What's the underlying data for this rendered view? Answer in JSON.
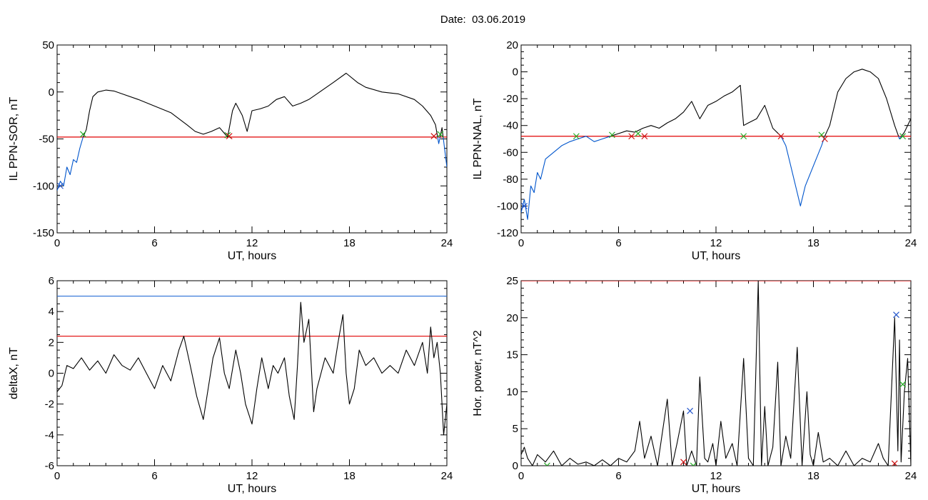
{
  "header": {
    "date_label": "Date:",
    "date_value": "03.06.2019"
  },
  "colors": {
    "trace": "#000000",
    "below": "#0055cc",
    "threshold_red": "#e00000",
    "threshold_blue": "#2a6fd6",
    "marker_green": "#22aa22",
    "marker_red": "#cc1111",
    "marker_blue": "#2255cc"
  },
  "chart_data": [
    {
      "id": "p1",
      "type": "line",
      "xlabel": "UT, hours",
      "ylabel": "IL PPN-SOR, nT",
      "xlim": [
        0,
        24
      ],
      "ylim": [
        -150,
        50
      ],
      "xticks": [
        0,
        6,
        12,
        18,
        24
      ],
      "yticks": [
        -150,
        -100,
        -50,
        0,
        50
      ],
      "threshold": {
        "value": -48,
        "color": "red"
      },
      "below_color": "blue",
      "series": [
        {
          "x": [
            0,
            0.2,
            0.4,
            0.6,
            0.8,
            1.0,
            1.2,
            1.4,
            1.6,
            1.8,
            2.0,
            2.2,
            2.5,
            3.0,
            3.5,
            4.0,
            5.0,
            6.0,
            7.0,
            8.0,
            8.5,
            9.0,
            9.5,
            10.0,
            10.3,
            10.5,
            10.8,
            11.0,
            11.4,
            11.7,
            12.0,
            12.5,
            13.0,
            13.5,
            14.0,
            14.5,
            15.0,
            15.5,
            16.0,
            17.0,
            17.8,
            18.5,
            19.0,
            20.0,
            21.0,
            22.0,
            22.5,
            23.0,
            23.3,
            23.5,
            23.7,
            24.0
          ],
          "y": [
            -105,
            -95,
            -100,
            -80,
            -88,
            -72,
            -75,
            -60,
            -48,
            -40,
            -20,
            -5,
            0,
            2,
            1,
            -2,
            -8,
            -15,
            -22,
            -35,
            -42,
            -45,
            -42,
            -38,
            -44,
            -48,
            -20,
            -12,
            -25,
            -42,
            -20,
            -18,
            -15,
            -8,
            -5,
            -15,
            -12,
            -8,
            -2,
            10,
            20,
            10,
            5,
            0,
            -2,
            -8,
            -15,
            -25,
            -35,
            -55,
            -38,
            -80
          ]
        }
      ],
      "markers": [
        {
          "x": 1.6,
          "y": -45,
          "color": "green"
        },
        {
          "x": 10.5,
          "y": -46,
          "color": "green"
        },
        {
          "x": 10.6,
          "y": -47,
          "color": "red"
        },
        {
          "x": 23.2,
          "y": -47,
          "color": "red"
        },
        {
          "x": 23.6,
          "y": -45,
          "color": "green"
        },
        {
          "x": 0.2,
          "y": -100,
          "color": "blue"
        }
      ]
    },
    {
      "id": "p2",
      "type": "line",
      "xlabel": "UT, hours",
      "ylabel": "IL PPN-NAL, nT",
      "xlim": [
        0,
        24
      ],
      "ylim": [
        -120,
        20
      ],
      "xticks": [
        0,
        6,
        12,
        18,
        24
      ],
      "yticks": [
        -120,
        -100,
        -80,
        -60,
        -40,
        -20,
        0,
        20
      ],
      "threshold": {
        "value": -48,
        "color": "red"
      },
      "below_color": "blue",
      "series": [
        {
          "x": [
            0,
            0.2,
            0.4,
            0.6,
            0.8,
            1.0,
            1.2,
            1.5,
            2.0,
            2.5,
            3.0,
            3.5,
            4.0,
            4.5,
            5.0,
            5.5,
            6.0,
            6.5,
            7.0,
            7.5,
            8.0,
            8.5,
            9.0,
            9.5,
            10.0,
            10.5,
            11.0,
            11.5,
            12.0,
            12.5,
            13.0,
            13.5,
            13.7,
            14.0,
            14.5,
            15.0,
            15.5,
            16.0,
            16.3,
            16.6,
            16.9,
            17.2,
            17.5,
            18.0,
            18.5,
            18.7,
            19.0,
            19.5,
            20.0,
            20.5,
            21.0,
            21.5,
            22.0,
            22.5,
            23.0,
            23.3,
            23.6,
            24.0
          ],
          "y": [
            -105,
            -95,
            -110,
            -85,
            -90,
            -75,
            -80,
            -65,
            -60,
            -55,
            -52,
            -50,
            -48,
            -52,
            -50,
            -48,
            -46,
            -44,
            -45,
            -42,
            -40,
            -42,
            -38,
            -35,
            -30,
            -22,
            -35,
            -25,
            -22,
            -18,
            -15,
            -10,
            -40,
            -38,
            -35,
            -25,
            -42,
            -48,
            -55,
            -70,
            -85,
            -100,
            -85,
            -70,
            -55,
            -48,
            -40,
            -15,
            -5,
            0,
            2,
            0,
            -5,
            -20,
            -40,
            -50,
            -45,
            -35
          ]
        }
      ],
      "markers": [
        {
          "x": 3.4,
          "y": -48,
          "color": "green"
        },
        {
          "x": 5.6,
          "y": -47,
          "color": "green"
        },
        {
          "x": 6.8,
          "y": -48,
          "color": "red"
        },
        {
          "x": 7.2,
          "y": -46,
          "color": "green"
        },
        {
          "x": 7.6,
          "y": -48,
          "color": "red"
        },
        {
          "x": 13.7,
          "y": -48,
          "color": "green"
        },
        {
          "x": 16.0,
          "y": -48,
          "color": "red"
        },
        {
          "x": 18.5,
          "y": -47,
          "color": "green"
        },
        {
          "x": 18.7,
          "y": -50,
          "color": "red"
        },
        {
          "x": 23.5,
          "y": -48,
          "color": "green"
        },
        {
          "x": 0.2,
          "y": -100,
          "color": "blue"
        }
      ]
    },
    {
      "id": "p3",
      "type": "line",
      "xlabel": "UT, hours",
      "ylabel": "deltaX, nT",
      "xlim": [
        0,
        24
      ],
      "ylim": [
        -6,
        6
      ],
      "xticks": [
        0,
        6,
        12,
        18,
        24
      ],
      "yticks": [
        -6,
        -4,
        -2,
        0,
        2,
        4,
        6
      ],
      "hlines": [
        {
          "value": 5.0,
          "color": "blue"
        },
        {
          "value": 2.4,
          "color": "red"
        }
      ],
      "series": [
        {
          "x": [
            0,
            0.3,
            0.6,
            1.0,
            1.5,
            2.0,
            2.5,
            3.0,
            3.5,
            4.0,
            4.5,
            5.0,
            5.5,
            6.0,
            6.5,
            7.0,
            7.5,
            7.8,
            8.2,
            8.6,
            9.0,
            9.3,
            9.6,
            10.0,
            10.3,
            10.6,
            11.0,
            11.3,
            11.6,
            12.0,
            12.3,
            12.6,
            13.0,
            13.3,
            13.6,
            14.0,
            14.3,
            14.6,
            14.8,
            15.0,
            15.2,
            15.5,
            15.8,
            16.0,
            16.5,
            17.0,
            17.3,
            17.6,
            17.8,
            18.0,
            18.3,
            18.6,
            19.0,
            19.5,
            20.0,
            20.5,
            21.0,
            21.5,
            22.0,
            22.5,
            22.8,
            23.0,
            23.2,
            23.4,
            23.6,
            23.8,
            24.0
          ],
          "y": [
            -1.2,
            -0.8,
            0.5,
            0.3,
            1.0,
            0.2,
            0.8,
            0.0,
            1.2,
            0.5,
            0.2,
            1.0,
            0.0,
            -1.0,
            0.5,
            -0.5,
            1.5,
            2.4,
            0.5,
            -1.5,
            -3.0,
            -1.0,
            1.0,
            2.3,
            0.0,
            -1.0,
            1.5,
            0.0,
            -2.0,
            -3.3,
            -1.0,
            1.0,
            -1.0,
            0.5,
            0.0,
            1.0,
            -1.5,
            -3.0,
            0.5,
            4.6,
            2.0,
            3.5,
            -2.5,
            -1.0,
            1.0,
            0.0,
            2.0,
            3.8,
            0.0,
            -2.0,
            -1.0,
            1.5,
            0.5,
            1.0,
            0.0,
            0.5,
            0.0,
            1.5,
            0.5,
            2.0,
            0.0,
            3.0,
            1.0,
            2.0,
            0.0,
            -4.0,
            -2.0
          ]
        }
      ]
    },
    {
      "id": "p4",
      "type": "line",
      "xlabel": "UT, hours",
      "ylabel": "Hor. power, nT^2",
      "xlim": [
        0,
        24
      ],
      "ylim": [
        0,
        25
      ],
      "xticks": [
        0,
        6,
        12,
        18,
        24
      ],
      "yticks": [
        0,
        5,
        10,
        15,
        20,
        25
      ],
      "hlines": [
        {
          "value": 25,
          "color": "red"
        }
      ],
      "series": [
        {
          "x": [
            0,
            0.2,
            0.4,
            0.7,
            1.0,
            1.5,
            2.0,
            2.5,
            3.0,
            3.5,
            4.0,
            4.5,
            5.0,
            5.5,
            6.0,
            6.5,
            7.0,
            7.3,
            7.6,
            8.0,
            8.4,
            8.8,
            9.0,
            9.3,
            9.6,
            10.0,
            10.2,
            10.5,
            10.8,
            11.0,
            11.3,
            11.5,
            11.8,
            12.0,
            12.3,
            12.6,
            13.0,
            13.3,
            13.7,
            14.0,
            14.3,
            14.6,
            14.8,
            15.0,
            15.2,
            15.5,
            15.8,
            16.0,
            16.3,
            16.6,
            17.0,
            17.3,
            17.6,
            17.8,
            18.0,
            18.3,
            18.6,
            19.0,
            19.5,
            20.0,
            20.5,
            21.0,
            21.5,
            22.0,
            22.3,
            22.6,
            23.0,
            23.2,
            23.3,
            23.4,
            23.6,
            23.8,
            24.0
          ],
          "y": [
            1.5,
            2.5,
            1.0,
            0.0,
            1.5,
            0.5,
            2.0,
            0.0,
            1.0,
            0.2,
            0.5,
            0.0,
            0.8,
            0.0,
            1.0,
            0.5,
            2.0,
            6.0,
            1.0,
            4.0,
            0.0,
            6.0,
            9.0,
            0.0,
            3.0,
            7.4,
            0.0,
            2.0,
            0.0,
            12.0,
            1.0,
            0.5,
            3.0,
            0.0,
            6.0,
            1.0,
            3.0,
            0.0,
            14.5,
            1.0,
            0.0,
            25.0,
            0.0,
            8.0,
            0.0,
            2.5,
            14.0,
            0.0,
            4.0,
            1.0,
            16.0,
            0.0,
            10.0,
            1.5,
            0.0,
            4.5,
            0.5,
            1.0,
            0.0,
            2.0,
            0.0,
            1.0,
            0.5,
            3.0,
            1.0,
            0.0,
            20.0,
            2.0,
            17.0,
            0.5,
            10.0,
            14.5,
            0.0
          ]
        }
      ],
      "markers": [
        {
          "x": 10.4,
          "y": 7.4,
          "color": "blue"
        },
        {
          "x": 23.1,
          "y": 20.4,
          "color": "blue"
        },
        {
          "x": 23.0,
          "y": 0.3,
          "color": "red"
        },
        {
          "x": 10.0,
          "y": 0.5,
          "color": "red"
        },
        {
          "x": 1.6,
          "y": 0.0,
          "color": "green"
        },
        {
          "x": 10.6,
          "y": 0.0,
          "color": "green"
        },
        {
          "x": 23.5,
          "y": 11.0,
          "color": "green"
        }
      ]
    }
  ]
}
